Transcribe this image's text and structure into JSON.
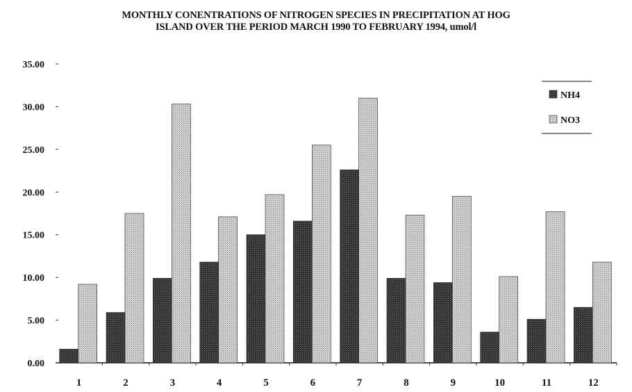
{
  "chart_data": {
    "type": "bar",
    "title_line1": "MONTHLY CONENTRATIONS OF NITROGEN SPECIES IN PRECIPITATION AT HOG",
    "title_line2": "ISLAND OVER THE PERIOD MARCH 1990 TO FEBRUARY 1994, umol/l",
    "xlabel": "",
    "ylabel": "",
    "categories": [
      "1",
      "2",
      "3",
      "4",
      "5",
      "6",
      "7",
      "8",
      "9",
      "10",
      "11",
      "12"
    ],
    "series": [
      {
        "name": "NH4",
        "color": "#3a3a3a",
        "values": [
          1.6,
          5.9,
          9.9,
          11.8,
          15.0,
          16.6,
          22.6,
          9.9,
          9.4,
          3.6,
          5.1,
          6.5
        ]
      },
      {
        "name": "NO3",
        "color": "#b8b8b8",
        "values": [
          9.2,
          17.5,
          30.3,
          17.1,
          19.7,
          25.5,
          31.0,
          17.3,
          19.5,
          10.1,
          17.7,
          11.8
        ]
      }
    ],
    "ylim": [
      0,
      35
    ],
    "yticks": [
      "0.00",
      "5.00",
      "10.00",
      "15.00",
      "20.00",
      "25.00",
      "30.00",
      "35.00"
    ],
    "grid": false,
    "legend_position": "top-right"
  }
}
